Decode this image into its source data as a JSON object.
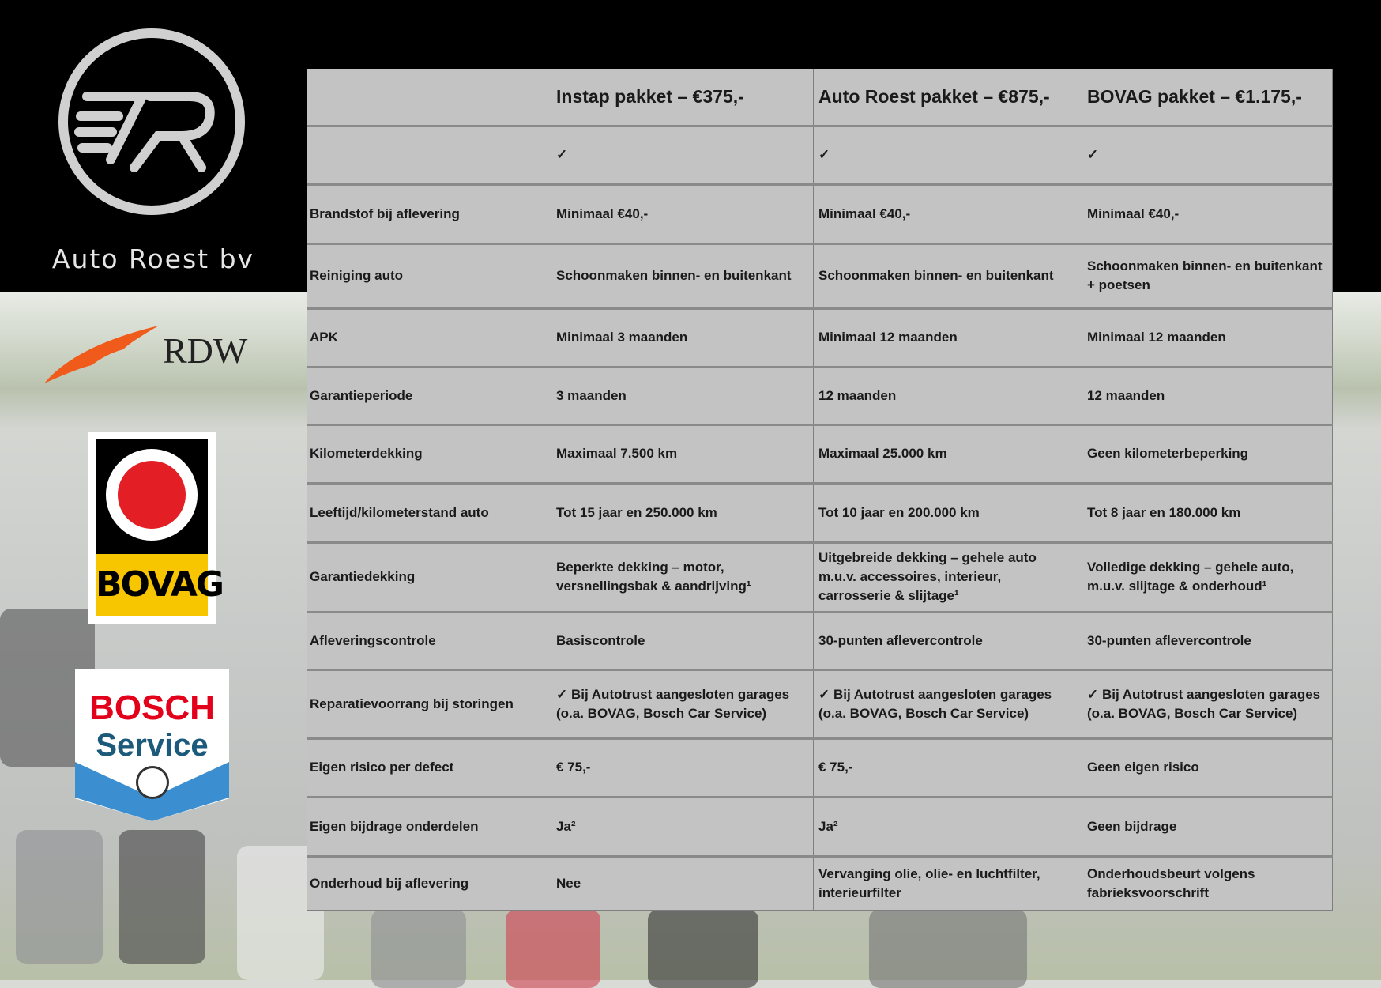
{
  "brand": {
    "name": "Auto Roest bv",
    "logo_letters": "AR"
  },
  "logos": {
    "rdw": "RDW",
    "bovag": "BOVAG",
    "bosch_1": "BOSCH",
    "bosch_2": "Service"
  },
  "table": {
    "headers": [
      "",
      "Instap pakket – €375,-",
      "Auto Roest pakket – €875,-",
      "BOVAG pakket – €1.175,-"
    ],
    "rows": [
      [
        "",
        "✓",
        "✓",
        "✓"
      ],
      [
        "Brandstof bij aflevering",
        "Minimaal €40,-",
        "Minimaal €40,-",
        "Minimaal €40,-"
      ],
      [
        "Reiniging auto",
        "Schoonmaken binnen- en buitenkant",
        "Schoonmaken binnen- en buitenkant",
        "Schoonmaken binnen- en buitenkant + poetsen"
      ],
      [
        "APK",
        "Minimaal 3 maanden",
        "Minimaal 12 maanden",
        "Minimaal 12 maanden"
      ],
      [
        "Garantieperiode",
        "3 maanden",
        "12 maanden",
        "12 maanden"
      ],
      [
        "Kilometerdekking",
        "Maximaal 7.500 km",
        "Maximaal 25.000 km",
        "Geen kilometerbeperking"
      ],
      [
        "Leeftijd/kilometerstand auto",
        "Tot 15 jaar en 250.000 km",
        "Tot 10 jaar en 200.000 km",
        "Tot 8 jaar en 180.000 km"
      ],
      [
        "Garantiedekking",
        "Beperkte dekking – motor, versnellingsbak & aandrijving¹",
        "Uitgebreide dekking – gehele auto m.u.v. accessoires, interieur, carrosserie & slijtage¹",
        "Volledige dekking – gehele auto, m.u.v. slijtage & onderhoud¹"
      ],
      [
        "Afleveringscontrole",
        "Basiscontrole",
        "30-punten aflevercontrole",
        "30-punten aflevercontrole"
      ],
      [
        "Reparatievoorrang bij storingen",
        "✓ Bij Autotrust aangesloten garages (o.a. BOVAG, Bosch Car Service)",
        "✓ Bij Autotrust aangesloten garages (o.a. BOVAG, Bosch Car Service)",
        "✓ Bij Autotrust aangesloten garages (o.a. BOVAG, Bosch Car Service)"
      ],
      [
        "Eigen risico per defect",
        "€ 75,-",
        "€ 75,-",
        "Geen eigen risico"
      ],
      [
        "Eigen bijdrage onderdelen",
        "Ja²",
        "Ja²",
        "Geen bijdrage"
      ],
      [
        "Onderhoud bij aflevering",
        "Nee",
        "Vervanging olie, olie- en luchtfilter, interieurfilter",
        "Onderhoudsbeurt volgens fabrieksvoorschrift"
      ]
    ]
  }
}
